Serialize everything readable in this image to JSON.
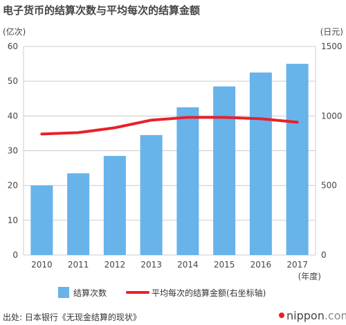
{
  "title": "电子货币的结算次数与平均每次的结算金额",
  "left_unit": "(亿次)",
  "right_unit": "(日元)",
  "x_unit": "(年度)",
  "source": "出处: 日本银行《无现金结算的现状》",
  "brand": {
    "prefix": "nippon",
    "suffix": ".com"
  },
  "colors": {
    "bar": "#67b3ea",
    "line": "#e8202a",
    "grid": "#cccccc",
    "brand_dot": "#e8202a"
  },
  "chart_data": {
    "type": "bar",
    "categories": [
      "2010",
      "2011",
      "2012",
      "2013",
      "2014",
      "2015",
      "2016",
      "2017"
    ],
    "series": [
      {
        "name": "结算次数",
        "type": "bar",
        "axis": "left",
        "values": [
          20,
          23.5,
          28.5,
          34.5,
          42.5,
          48.5,
          52.5,
          55
        ]
      },
      {
        "name": "平均每次的结算金额(右坐标轴)",
        "type": "line",
        "axis": "right",
        "values": [
          870,
          880,
          915,
          970,
          990,
          990,
          980,
          955
        ]
      }
    ],
    "y_left": {
      "min": 0,
      "max": 60,
      "ticks": [
        "0",
        "10",
        "20",
        "30",
        "40",
        "50",
        "60"
      ]
    },
    "y_right": {
      "min": 0,
      "max": 1500,
      "ticks": [
        "0",
        "500",
        "1000",
        "1500"
      ]
    },
    "grid": true,
    "legend_position": "bottom"
  }
}
